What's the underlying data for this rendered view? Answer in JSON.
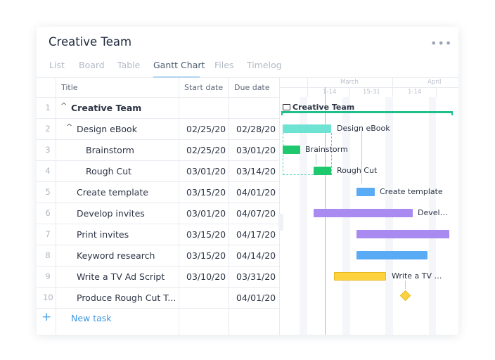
{
  "header": {
    "title": "Creative Team",
    "menu": "•••"
  },
  "tabs": [
    "List",
    "Board",
    "Table",
    "Gantt Chart",
    "Files",
    "Timelog"
  ],
  "active_tab": 3,
  "table": {
    "columns": [
      "Title",
      "Start date",
      "Due date"
    ],
    "rows": [
      {
        "number": 1,
        "title": "Creative Team",
        "start": null,
        "due": null
      },
      {
        "number": 2,
        "title": "Design eBook",
        "start": "02/25/20",
        "due": "02/28/20"
      },
      {
        "number": 3,
        "title": "Brainstorm",
        "start": "02/25/20",
        "due": "03/01/20"
      },
      {
        "number": 4,
        "title": "Rough Cut",
        "start": "03/01/20",
        "due": "03/14/20"
      },
      {
        "number": 5,
        "title": "Create template",
        "start": "03/15/20",
        "due": "04/01/20"
      },
      {
        "number": 6,
        "title": "Develop invites",
        "start": "03/01/20",
        "due": "04/07/20"
      },
      {
        "number": 7,
        "title": "Print invites",
        "start": "03/15/20",
        "due": "04/17/20"
      },
      {
        "number": 8,
        "title": "Keyword research",
        "start": "03/15/20",
        "due": "04/14/20"
      },
      {
        "number": 9,
        "title": "Write a TV Ad Script",
        "start": "03/10/20",
        "due": "03/31/20"
      },
      {
        "number": 10,
        "title": "Produce Rough Cut T...",
        "start": null,
        "due": "04/01/20"
      }
    ],
    "new_task": "New task",
    "add_icon": "+"
  },
  "timeline": {
    "months": [
      "March",
      "April"
    ],
    "periods": [
      "1-14",
      "15-31",
      "1-14"
    ]
  }
}
